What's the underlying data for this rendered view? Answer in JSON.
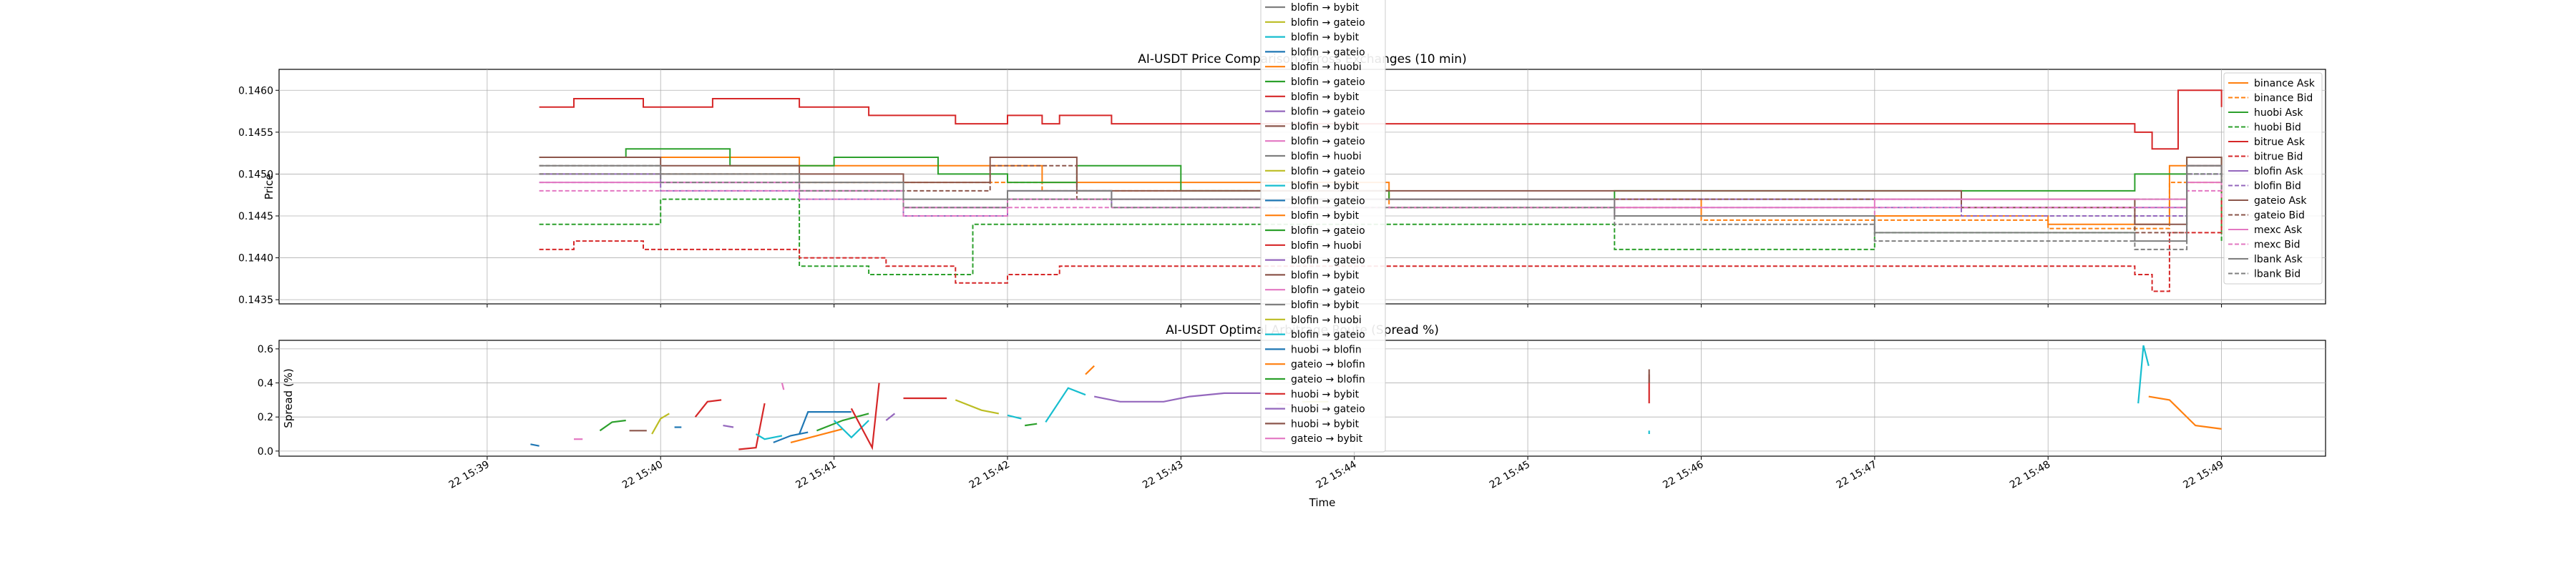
{
  "chart_data": [
    {
      "type": "line",
      "title": "AI-USDT Price Comparison Across Exchanges (10 min)",
      "xlabel": "",
      "ylabel": "Price",
      "ylim": [
        0.14345,
        0.14625
      ],
      "y_ticks": [
        "0.1435",
        "0.1440",
        "0.1445",
        "0.1450",
        "0.1455",
        "0.1460"
      ],
      "y_tick_values": [
        0.1435,
        0.144,
        0.1445,
        0.145,
        0.1455,
        0.146
      ],
      "x_range_min": [
        -1.2,
        10.6
      ],
      "grid": true,
      "legend_position": "right",
      "series": [
        {
          "name": "binance Ask",
          "color": "#ff7f0e",
          "dash": false,
          "x": [
            0.3,
            1.8,
            3.2,
            5.2,
            7.0,
            9.0,
            9.7,
            10.0
          ],
          "y": [
            0.1452,
            0.1451,
            0.1449,
            0.1447,
            0.1445,
            0.1444,
            0.1451,
            0.1449
          ]
        },
        {
          "name": "binance Bid",
          "color": "#ff7f0e",
          "dash": true,
          "x": [
            0.3,
            1.8,
            3.2,
            5.2,
            7.0,
            9.0,
            9.7,
            10.0
          ],
          "y": [
            0.145,
            0.1449,
            0.1448,
            0.1446,
            0.14445,
            0.14435,
            0.1449,
            0.14475
          ]
        },
        {
          "name": "huobi Ask",
          "color": "#2ca02c",
          "dash": false,
          "x": [
            0.3,
            0.8,
            1.4,
            2.0,
            2.6,
            3.0,
            3.4,
            4.0,
            5.2,
            6.5,
            9.5,
            9.8,
            10.0
          ],
          "y": [
            0.1452,
            0.1453,
            0.1451,
            0.1452,
            0.145,
            0.1449,
            0.1451,
            0.1448,
            0.1447,
            0.1448,
            0.145,
            0.1452,
            0.1451
          ]
        },
        {
          "name": "huobi Bid",
          "color": "#2ca02c",
          "dash": true,
          "x": [
            0.3,
            0.6,
            1.0,
            1.4,
            1.8,
            2.2,
            2.8,
            3.3,
            5.5,
            6.5,
            8.0,
            9.5,
            9.8,
            10.0
          ],
          "y": [
            0.1444,
            0.1444,
            0.1447,
            0.1447,
            0.1439,
            0.1438,
            0.1444,
            0.1444,
            0.1444,
            0.1441,
            0.1443,
            0.1447,
            0.145,
            0.1442
          ]
        },
        {
          "name": "bitrue Ask",
          "color": "#d62728",
          "dash": false,
          "x": [
            0.3,
            0.5,
            0.9,
            1.3,
            1.8,
            2.2,
            2.7,
            3.0,
            3.2,
            3.3,
            3.6,
            9.5,
            9.6,
            9.75,
            10.0
          ],
          "y": [
            0.1458,
            0.1459,
            0.1458,
            0.1459,
            0.1458,
            0.1457,
            0.1456,
            0.1457,
            0.1456,
            0.1457,
            0.1456,
            0.1455,
            0.1453,
            0.146,
            0.1458
          ]
        },
        {
          "name": "bitrue Bid",
          "color": "#d62728",
          "dash": true,
          "x": [
            0.3,
            0.5,
            0.9,
            1.3,
            1.8,
            2.3,
            2.7,
            3.0,
            3.3,
            3.6,
            9.5,
            9.6,
            9.7,
            10.0
          ],
          "y": [
            0.1441,
            0.1442,
            0.1441,
            0.1441,
            0.144,
            0.1439,
            0.1437,
            0.1438,
            0.1439,
            0.1439,
            0.1438,
            0.1436,
            0.1443,
            0.1448
          ]
        },
        {
          "name": "blofin Ask",
          "color": "#9467bd",
          "dash": false,
          "x": [
            0.3,
            1.0,
            1.8,
            2.4,
            3.0,
            3.6,
            4.5,
            6.0,
            8.5,
            9.5,
            9.8,
            10.0
          ],
          "y": [
            0.145,
            0.1449,
            0.1448,
            0.1446,
            0.1448,
            0.1447,
            0.1447,
            0.1447,
            0.1446,
            0.1446,
            0.1451,
            0.145
          ]
        },
        {
          "name": "blofin Bid",
          "color": "#9467bd",
          "dash": true,
          "x": [
            0.3,
            1.0,
            1.8,
            2.4,
            3.0,
            3.6,
            4.5,
            6.0,
            8.5,
            9.5,
            9.8,
            10.0
          ],
          "y": [
            0.1449,
            0.1448,
            0.1447,
            0.1445,
            0.1447,
            0.1446,
            0.1446,
            0.1446,
            0.1445,
            0.1445,
            0.145,
            0.1449
          ]
        },
        {
          "name": "gateio Ask",
          "color": "#8c564b",
          "dash": false,
          "x": [
            0.3,
            1.0,
            1.8,
            2.4,
            2.9,
            3.4,
            4.0,
            5.2,
            7.0,
            8.5,
            9.5,
            9.8,
            10.0
          ],
          "y": [
            0.1452,
            0.1451,
            0.145,
            0.1449,
            0.1452,
            0.1448,
            0.1448,
            0.1448,
            0.1448,
            0.1447,
            0.1444,
            0.1452,
            0.145
          ]
        },
        {
          "name": "gateio Bid",
          "color": "#8c564b",
          "dash": true,
          "x": [
            0.3,
            1.0,
            1.8,
            2.4,
            2.9,
            3.4,
            4.0,
            5.2,
            7.0,
            8.5,
            9.5,
            9.8,
            10.0
          ],
          "y": [
            0.1451,
            0.145,
            0.1449,
            0.1448,
            0.1451,
            0.1447,
            0.1447,
            0.1447,
            0.1447,
            0.1446,
            0.1443,
            0.1451,
            0.1449
          ]
        },
        {
          "name": "mexc Ask",
          "color": "#e377c2",
          "dash": false,
          "x": [
            0.3,
            1.0,
            1.8,
            2.4,
            3.0,
            3.6,
            5.0,
            6.5,
            8.0,
            9.5,
            9.8,
            10.0
          ],
          "y": [
            0.1449,
            0.1449,
            0.1448,
            0.1446,
            0.1447,
            0.1447,
            0.1447,
            0.1446,
            0.1447,
            0.1447,
            0.1449,
            0.1448
          ]
        },
        {
          "name": "mexc Bid",
          "color": "#e377c2",
          "dash": true,
          "x": [
            0.3,
            1.0,
            1.8,
            2.4,
            3.0,
            3.6,
            5.0,
            6.5,
            8.0,
            9.5,
            9.8,
            10.0
          ],
          "y": [
            0.1448,
            0.1448,
            0.1447,
            0.1445,
            0.1446,
            0.1446,
            0.1446,
            0.1445,
            0.1446,
            0.1446,
            0.1448,
            0.1447
          ]
        },
        {
          "name": "lbank Ask",
          "color": "#7f7f7f",
          "dash": false,
          "x": [
            0.3,
            1.0,
            1.8,
            2.4,
            3.0,
            3.6,
            5.0,
            6.5,
            8.0,
            9.5,
            9.8,
            10.0
          ],
          "y": [
            0.1451,
            0.145,
            0.1449,
            0.1447,
            0.1448,
            0.1447,
            0.1447,
            0.1445,
            0.1443,
            0.1442,
            0.1451,
            0.1449
          ]
        },
        {
          "name": "lbank Bid",
          "color": "#7f7f7f",
          "dash": true,
          "x": [
            0.3,
            1.0,
            1.8,
            2.4,
            3.0,
            3.6,
            5.0,
            6.5,
            8.0,
            9.5,
            9.8,
            10.0
          ],
          "y": [
            0.145,
            0.1449,
            0.1448,
            0.1446,
            0.1447,
            0.1446,
            0.1446,
            0.1444,
            0.1442,
            0.1441,
            0.145,
            0.1448
          ]
        }
      ]
    },
    {
      "type": "line",
      "title": "AI-USDT Optimal Arbitrage Route (Spread %)",
      "xlabel": "Time",
      "ylabel": "Spread (%)",
      "ylim": [
        -0.03,
        0.65
      ],
      "y_ticks": [
        "0.0",
        "0.2",
        "0.4",
        "0.6"
      ],
      "y_tick_values": [
        0.0,
        0.2,
        0.4,
        0.6
      ],
      "x_ticks": [
        "22 15:39",
        "22 15:40",
        "22 15:41",
        "22 15:42",
        "22 15:43",
        "22 15:44",
        "22 15:45",
        "22 15:46",
        "22 15:47",
        "22 15:48",
        "22 15:49"
      ],
      "x_tick_values": [
        0,
        1,
        2,
        3,
        4,
        5,
        6,
        7,
        8,
        9,
        10
      ],
      "x_range_min": [
        -1.2,
        10.6
      ],
      "grid": true,
      "segments": [
        {
          "color": "#1f77b4",
          "x": [
            0.25,
            0.3
          ],
          "y": [
            0.04,
            0.03
          ]
        },
        {
          "color": "#e377c2",
          "x": [
            0.5,
            0.55
          ],
          "y": [
            0.07,
            0.07
          ]
        },
        {
          "color": "#2ca02c",
          "x": [
            0.65,
            0.72,
            0.8
          ],
          "y": [
            0.12,
            0.17,
            0.18
          ]
        },
        {
          "color": "#8c564b",
          "x": [
            0.82,
            0.92
          ],
          "y": [
            0.12,
            0.12
          ]
        },
        {
          "color": "#bcbd22",
          "x": [
            0.95,
            1.0,
            1.05
          ],
          "y": [
            0.1,
            0.19,
            0.22
          ]
        },
        {
          "color": "#1f77b4",
          "x": [
            1.08,
            1.12
          ],
          "y": [
            0.14,
            0.14
          ]
        },
        {
          "color": "#d62728",
          "x": [
            1.2,
            1.27,
            1.35
          ],
          "y": [
            0.2,
            0.29,
            0.3
          ]
        },
        {
          "color": "#9467bd",
          "x": [
            1.36,
            1.42
          ],
          "y": [
            0.15,
            0.14
          ]
        },
        {
          "color": "#d62728",
          "x": [
            1.45,
            1.55,
            1.6
          ],
          "y": [
            0.01,
            0.02,
            0.28
          ]
        },
        {
          "color": "#17becf",
          "x": [
            1.55,
            1.6,
            1.7
          ],
          "y": [
            0.1,
            0.07,
            0.09
          ]
        },
        {
          "color": "#e377c2",
          "x": [
            1.7,
            1.71
          ],
          "y": [
            0.4,
            0.36
          ]
        },
        {
          "color": "#1f77b4",
          "x": [
            1.65,
            1.75,
            1.85
          ],
          "y": [
            0.05,
            0.09,
            0.11
          ]
        },
        {
          "color": "#1f77b4",
          "x": [
            1.8,
            1.85,
            1.95,
            2.1
          ],
          "y": [
            0.1,
            0.23,
            0.23,
            0.23
          ]
        },
        {
          "color": "#ff7f0e",
          "x": [
            1.75,
            1.9,
            2.05
          ],
          "y": [
            0.05,
            0.09,
            0.13
          ]
        },
        {
          "color": "#2ca02c",
          "x": [
            1.9,
            2.05,
            2.2
          ],
          "y": [
            0.12,
            0.18,
            0.22
          ]
        },
        {
          "color": "#17becf",
          "x": [
            2.0,
            2.1,
            2.2
          ],
          "y": [
            0.18,
            0.08,
            0.18
          ]
        },
        {
          "color": "#d62728",
          "x": [
            2.1,
            2.22,
            2.26
          ],
          "y": [
            0.25,
            0.02,
            0.4
          ]
        },
        {
          "color": "#9467bd",
          "x": [
            2.3,
            2.35
          ],
          "y": [
            0.18,
            0.22
          ]
        },
        {
          "color": "#d62728",
          "x": [
            2.4,
            2.55,
            2.65
          ],
          "y": [
            0.31,
            0.31,
            0.31
          ]
        },
        {
          "color": "#bcbd22",
          "x": [
            2.7,
            2.85,
            2.95
          ],
          "y": [
            0.3,
            0.24,
            0.22
          ]
        },
        {
          "color": "#17becf",
          "x": [
            3.0,
            3.08
          ],
          "y": [
            0.21,
            0.19
          ]
        },
        {
          "color": "#2ca02c",
          "x": [
            3.1,
            3.17
          ],
          "y": [
            0.15,
            0.16
          ]
        },
        {
          "color": "#17becf",
          "x": [
            3.22,
            3.35,
            3.45
          ],
          "y": [
            0.17,
            0.37,
            0.33
          ]
        },
        {
          "color": "#ff7f0e",
          "x": [
            3.45,
            3.5
          ],
          "y": [
            0.45,
            0.5
          ]
        },
        {
          "color": "#9467bd",
          "x": [
            3.5,
            3.65,
            3.9,
            4.05,
            4.25,
            4.5
          ],
          "y": [
            0.32,
            0.29,
            0.29,
            0.32,
            0.34,
            0.34
          ]
        },
        {
          "color": "#e377c2",
          "x": [
            4.55,
            4.65
          ],
          "y": [
            0.28,
            0.27
          ]
        },
        {
          "color": "#bcbd22",
          "x": [
            4.7,
            4.85
          ],
          "y": [
            0.29,
            0.29
          ]
        },
        {
          "color": "#d62728",
          "x": [
            6.7,
            6.7
          ],
          "y": [
            0.28,
            0.45
          ]
        },
        {
          "color": "#8c564b",
          "x": [
            6.7,
            6.7
          ],
          "y": [
            0.4,
            0.48
          ]
        },
        {
          "color": "#17becf",
          "x": [
            6.7,
            6.7
          ],
          "y": [
            0.1,
            0.12
          ]
        },
        {
          "color": "#17becf",
          "x": [
            9.52,
            9.55,
            9.58
          ],
          "y": [
            0.28,
            0.62,
            0.5
          ]
        },
        {
          "color": "#ff7f0e",
          "x": [
            9.58,
            9.7,
            9.85,
            10.0
          ],
          "y": [
            0.32,
            0.3,
            0.15,
            0.13
          ]
        }
      ],
      "legend_position": "center",
      "legend": [
        {
          "label": "blofin → bybit",
          "color": "#7f7f7f"
        },
        {
          "label": "blofin → gateio",
          "color": "#bcbd22"
        },
        {
          "label": "blofin → bybit",
          "color": "#17becf"
        },
        {
          "label": "blofin → gateio",
          "color": "#1f77b4"
        },
        {
          "label": "blofin → huobi",
          "color": "#ff7f0e"
        },
        {
          "label": "blofin → gateio",
          "color": "#2ca02c"
        },
        {
          "label": "blofin → bybit",
          "color": "#d62728"
        },
        {
          "label": "blofin → gateio",
          "color": "#9467bd"
        },
        {
          "label": "blofin → bybit",
          "color": "#8c564b"
        },
        {
          "label": "blofin → gateio",
          "color": "#e377c2"
        },
        {
          "label": "blofin → huobi",
          "color": "#7f7f7f"
        },
        {
          "label": "blofin → gateio",
          "color": "#bcbd22"
        },
        {
          "label": "blofin → bybit",
          "color": "#17becf"
        },
        {
          "label": "blofin → gateio",
          "color": "#1f77b4"
        },
        {
          "label": "blofin → bybit",
          "color": "#ff7f0e"
        },
        {
          "label": "blofin → gateio",
          "color": "#2ca02c"
        },
        {
          "label": "blofin → huobi",
          "color": "#d62728"
        },
        {
          "label": "blofin → gateio",
          "color": "#9467bd"
        },
        {
          "label": "blofin → bybit",
          "color": "#8c564b"
        },
        {
          "label": "blofin → gateio",
          "color": "#e377c2"
        },
        {
          "label": "blofin → bybit",
          "color": "#7f7f7f"
        },
        {
          "label": "blofin → huobi",
          "color": "#bcbd22"
        },
        {
          "label": "blofin → gateio",
          "color": "#17becf"
        },
        {
          "label": "huobi → blofin",
          "color": "#1f77b4"
        },
        {
          "label": "gateio → blofin",
          "color": "#ff7f0e"
        },
        {
          "label": "gateio → blofin",
          "color": "#2ca02c"
        },
        {
          "label": "huobi → bybit",
          "color": "#d62728"
        },
        {
          "label": "huobi → gateio",
          "color": "#9467bd"
        },
        {
          "label": "huobi → bybit",
          "color": "#8c564b"
        },
        {
          "label": "gateio → bybit",
          "color": "#e377c2"
        }
      ]
    }
  ]
}
